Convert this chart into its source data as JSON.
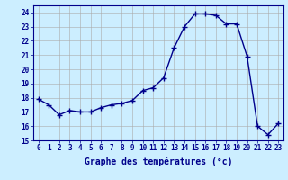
{
  "x": [
    0,
    1,
    2,
    3,
    4,
    5,
    6,
    7,
    8,
    9,
    10,
    11,
    12,
    13,
    14,
    15,
    16,
    17,
    18,
    19,
    20,
    21,
    22,
    23
  ],
  "y": [
    17.9,
    17.5,
    16.8,
    17.1,
    17.0,
    17.0,
    17.3,
    17.5,
    17.6,
    17.8,
    18.5,
    18.7,
    19.4,
    21.5,
    23.0,
    23.9,
    23.9,
    23.8,
    23.2,
    23.2,
    20.9,
    16.0,
    15.4,
    16.2
  ],
  "line_color": "#00008b",
  "marker": "+",
  "marker_size": 4,
  "bg_color": "#cceeff",
  "grid_color": "#aaaaaa",
  "xlabel": "Graphe des températures (°c)",
  "ylim": [
    15,
    24.5
  ],
  "xlim": [
    -0.5,
    23.5
  ],
  "yticks": [
    15,
    16,
    17,
    18,
    19,
    20,
    21,
    22,
    23,
    24
  ],
  "xticks": [
    0,
    1,
    2,
    3,
    4,
    5,
    6,
    7,
    8,
    9,
    10,
    11,
    12,
    13,
    14,
    15,
    16,
    17,
    18,
    19,
    20,
    21,
    22,
    23
  ],
  "axis_color": "#00008b",
  "linewidth": 1.0,
  "tick_fontsize": 5.5,
  "xlabel_fontsize": 7.0
}
